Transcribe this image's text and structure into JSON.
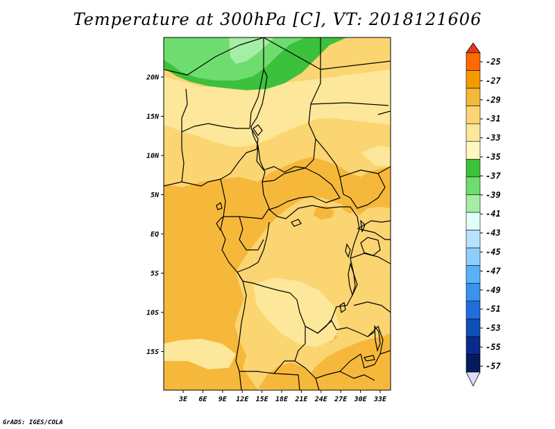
{
  "title": "Temperature at 300hPa [C], VT: 2018121606",
  "credit": "GrADS: IGES/COLA",
  "map": {
    "lon_labels": [
      "3E",
      "6E",
      "9E",
      "12E",
      "15E",
      "18E",
      "21E",
      "24E",
      "27E",
      "30E",
      "33E"
    ],
    "lat_labels": [
      "20N",
      "15N",
      "10N",
      "5N",
      "EQ",
      "5S",
      "10S",
      "15S"
    ]
  },
  "colorbar": {
    "labels": [
      "-25",
      "-27",
      "-29",
      "-31",
      "-33",
      "-35",
      "-37",
      "-39",
      "-41",
      "-43",
      "-45",
      "-47",
      "-49",
      "-51",
      "-53",
      "-55",
      "-57"
    ],
    "colors": [
      "#ff6a00",
      "#f59a00",
      "#f5b83a",
      "#fbd571",
      "#fde79a",
      "#fff6c0",
      "#3cc13c",
      "#6fdc6f",
      "#a5eea5",
      "#e1fff9",
      "#b8e3ff",
      "#8ccfff",
      "#59b2f8",
      "#3a93ec",
      "#1f6edc",
      "#0f4fb6",
      "#0a2a8c",
      "#081a5e"
    ],
    "top_arrow_color": "#e8381c",
    "bottom_arrow_color": "#dcdcf4"
  },
  "colors": {
    "t_minus_29_to_31": "#f5b83a",
    "t_minus_31_to_33": "#fbd571",
    "t_minus_33_to_35": "#fde79a",
    "t_minus_35_to_37": "#fff6c0",
    "t_minus_37_to_39": "#3cc13c",
    "t_minus_39_to_41": "#6fdc6f",
    "t_minus_41_to_43": "#a5eea5",
    "boundaries": "#000000"
  }
}
